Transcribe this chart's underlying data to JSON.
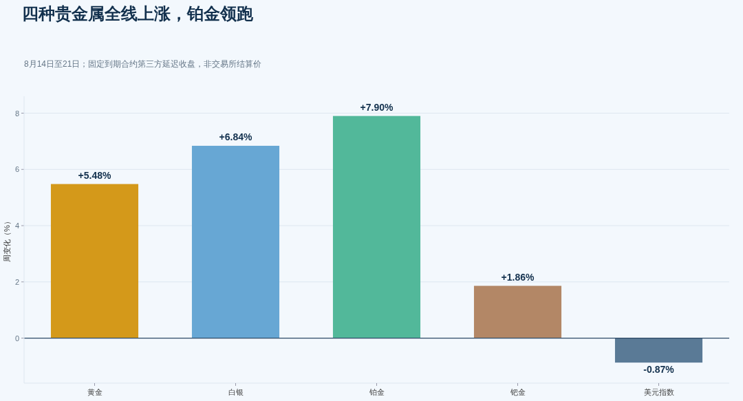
{
  "chart_data": {
    "type": "bar",
    "title": "四种贵金属全线上涨，铂金领跑",
    "subtitle": "8月14日至21日；固定到期合约第三方延迟收盘，非交易所结算价",
    "ylabel": "周变化（%）",
    "categories": [
      "黄金",
      "白银",
      "铂金",
      "钯金",
      "美元指数"
    ],
    "values": [
      5.48,
      6.84,
      7.9,
      1.86,
      -0.87
    ],
    "colors": [
      "#d4991a",
      "#67a7d4",
      "#52b89a",
      "#b38766",
      "#5a7a96"
    ],
    "value_labels": [
      "+5.48%",
      "+6.84%",
      "+7.90%",
      "+1.86%",
      "-0.87%"
    ],
    "ylim": [
      -1.6,
      8.6
    ],
    "yticks": [
      0,
      2,
      4,
      6,
      8
    ],
    "grid": "y",
    "ref_lines": [
      {
        "axis": "y",
        "value": 0,
        "color": "#2c4a66"
      }
    ]
  }
}
